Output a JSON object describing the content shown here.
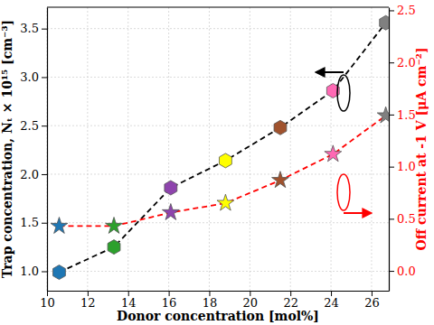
{
  "chart_data": {
    "type": "line",
    "x_label": "Donor concentration [mol%]",
    "y_label": "Trap concentration, Nₜ × 10¹⁵ [cm⁻³]",
    "y2_label": "Off current at -1 V [μA cm⁻²]",
    "x": [
      10.6,
      13.3,
      16.1,
      18.8,
      21.5,
      24.1,
      26.7
    ],
    "xlim": [
      10,
      26.85
    ],
    "xticks": [
      10,
      12,
      14,
      16,
      18,
      20,
      22,
      24,
      26
    ],
    "ylim": [
      0.8,
      3.72
    ],
    "yticks": [
      {
        "value": 1,
        "label": "1.0"
      },
      {
        "value": 1.5,
        "label": "1.5"
      },
      {
        "value": 2,
        "label": "2.0"
      },
      {
        "value": 2.5,
        "label": "2.5"
      },
      {
        "value": 3,
        "label": "3.0"
      },
      {
        "value": 3.5,
        "label": "3.5"
      }
    ],
    "y2lim": [
      -0.19,
      2.53
    ],
    "y2ticks": [
      {
        "value": 0,
        "label": "0.0"
      },
      {
        "value": 0.5,
        "label": "0.5"
      },
      {
        "value": 1,
        "label": "1.0"
      },
      {
        "value": 1.5,
        "label": "1.5"
      },
      {
        "value": 2,
        "label": "2.0"
      },
      {
        "value": 2.5,
        "label": "2.5"
      }
    ],
    "grid": true,
    "series": [
      {
        "name": "Trap concentration",
        "axis": "y",
        "color": "#000000",
        "line_style": "dashed",
        "marker": "hexagon",
        "colors": [
          "#1f77b4",
          "#2ca02c",
          "#8e44ad",
          "#ffff00",
          "#a0522d",
          "#ff69b4",
          "#808080"
        ],
        "values": [
          0.99,
          1.25,
          1.86,
          2.14,
          2.48,
          2.86,
          3.56
        ]
      },
      {
        "name": "Off current",
        "axis": "y2",
        "color": "#ff0000",
        "line_style": "dashed",
        "marker": "star",
        "colors": [
          "#1f77b4",
          "#2ca02c",
          "#8e44ad",
          "#ffff00",
          "#a0522d",
          "#ff69b4",
          "#808080"
        ],
        "values": [
          0.43,
          0.43,
          0.56,
          0.65,
          0.87,
          1.12,
          1.49
        ]
      }
    ]
  }
}
